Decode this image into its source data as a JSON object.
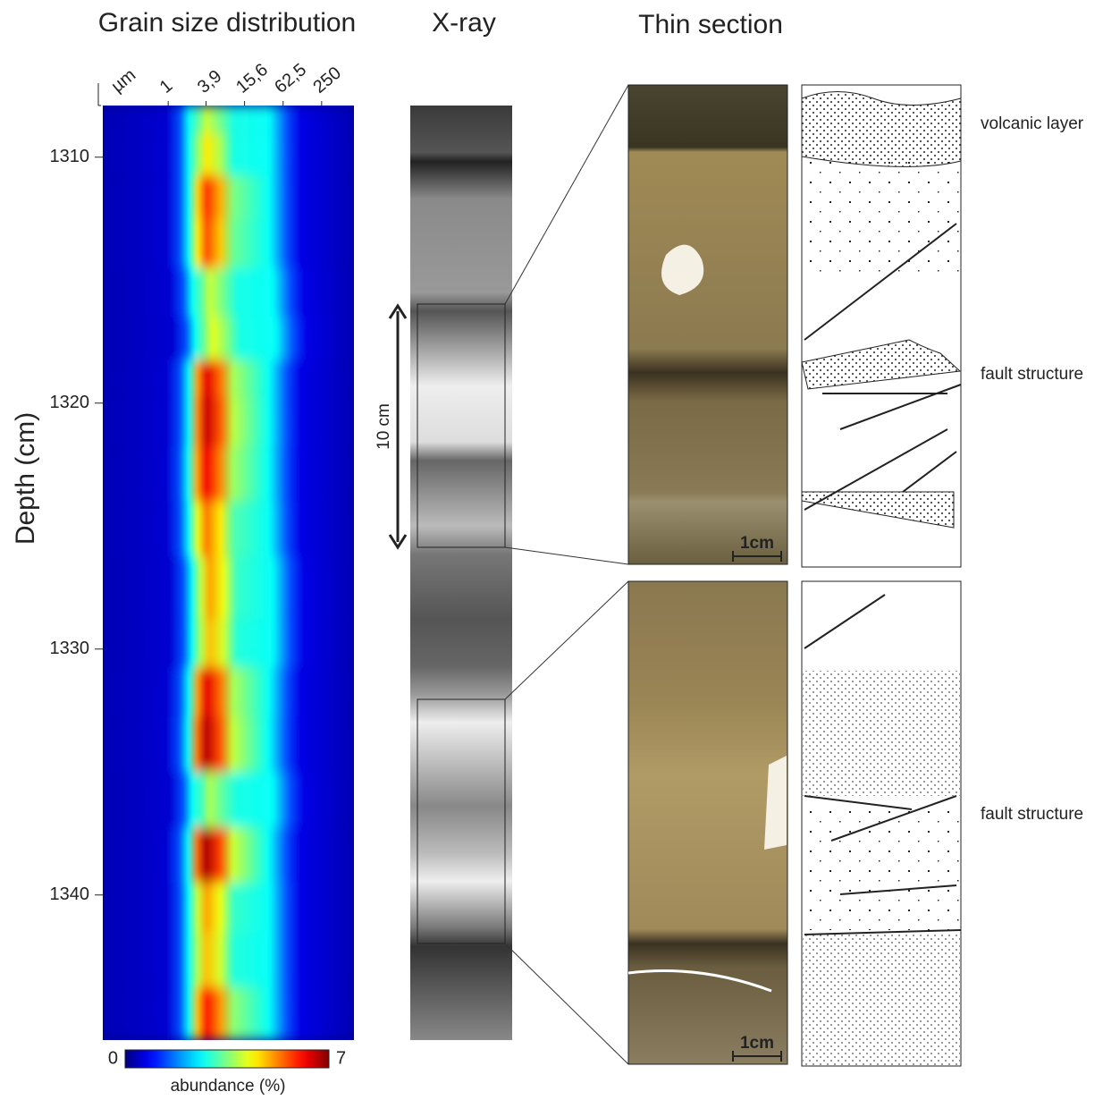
{
  "chart_data": {
    "type": "heatmap",
    "title": "Grain size distribution",
    "y_label": "Depth (cm)",
    "x_unit": "µm",
    "xscale": "log",
    "xlim": [
      0.095,
      800
    ],
    "xticks": [
      1,
      {
        "value": 3.9,
        "label": "3,9"
      },
      {
        "value": 15.6,
        "label": "15,6"
      },
      {
        "value": 62.5,
        "label": "62,5"
      },
      250
    ],
    "ylim": [
      1307.9,
      1345.9
    ],
    "yticks": [
      1310,
      1320,
      1330,
      1340
    ],
    "y": [
      1308,
      1310,
      1311.5,
      1313.5,
      1315.5,
      1317.5,
      1319,
      1320.5,
      1323,
      1325,
      1327.5,
      1330,
      1331.5,
      1334,
      1336,
      1338.5,
      1340.5,
      1342.5,
      1345
    ],
    "x": [
      4,
      4,
      4,
      4,
      4.5,
      5,
      4,
      4,
      3.9,
      4,
      4.5,
      4.5,
      4,
      3.9,
      4.5,
      3.9,
      4,
      4,
      4
    ],
    "values": [
      4,
      4.5,
      5.8,
      5.6,
      4,
      4.2,
      6.3,
      6.5,
      6.2,
      5.3,
      5,
      4.8,
      6.3,
      6.6,
      3.8,
      6.7,
      5,
      4.8,
      6
    ],
    "colorbar": {
      "label": "abundance (%)",
      "lim": [
        0,
        7
      ],
      "ticks": [
        0,
        7
      ],
      "colormap": "jet"
    }
  },
  "xray": {
    "title": "X-ray",
    "scale_label": "10 cm"
  },
  "thin_section": {
    "title": "Thin section",
    "scale_labels": [
      "1cm",
      "1cm"
    ],
    "annotations": [
      "volcanic layer",
      "fault structure",
      "fault structure"
    ]
  }
}
